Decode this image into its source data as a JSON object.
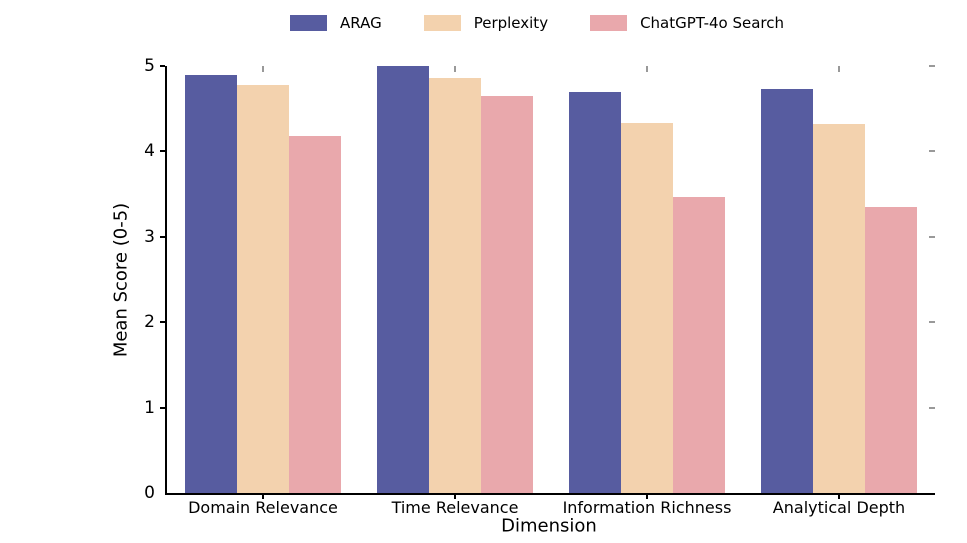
{
  "chart_data": {
    "type": "bar",
    "title": "",
    "xlabel": "Dimension",
    "ylabel": "Mean Score (0-5)",
    "ylim": [
      0,
      5
    ],
    "yticks": [
      0,
      1,
      2,
      3,
      4,
      5
    ],
    "grid": false,
    "legend_position": "top-center",
    "background_color": "#ffffff",
    "axis_color": "#000000",
    "categories": [
      "Domain Relevance",
      "Time Relevance",
      "Information Richness",
      "Analytical Depth"
    ],
    "series": [
      {
        "name": "ARAG",
        "color": "#575CA0",
        "values": [
          4.9,
          5.0,
          4.7,
          4.73
        ]
      },
      {
        "name": "Perplexity",
        "color": "#F3D2AE",
        "values": [
          4.78,
          4.86,
          4.33,
          4.32
        ]
      },
      {
        "name": "ChatGPT-4o Search",
        "color": "#E9A8AC",
        "values": [
          4.18,
          4.65,
          3.47,
          3.35
        ]
      }
    ]
  }
}
